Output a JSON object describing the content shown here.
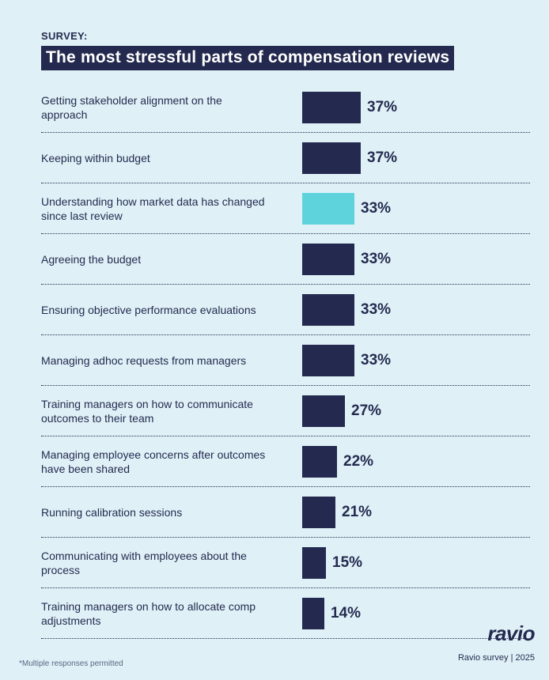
{
  "header": {
    "eyebrow": "SURVEY:",
    "title": "The most stressful parts of compensation reviews"
  },
  "colors": {
    "background": "#dff1f7",
    "bar_default": "#242a4f",
    "bar_highlight": "#5fd3dc",
    "text": "#242a4f"
  },
  "chart_data": {
    "type": "bar",
    "orientation": "horizontal",
    "title": "The most stressful parts of compensation reviews",
    "xlabel": "",
    "ylabel": "",
    "xlim": [
      0,
      37
    ],
    "grid": false,
    "unit": "%",
    "highlight_index": 2,
    "categories": [
      "Getting stakeholder alignment on the approach",
      "Keeping within budget",
      "Understanding how market data has changed since last review",
      "Agreeing the budget",
      "Ensuring objective performance evaluations",
      "Managing adhoc requests from managers",
      "Training managers on how to communicate outcomes to their team",
      "Managing employee concerns after outcomes have been shared",
      "Running calibration sessions",
      "Communicating with employees about the process",
      "Training managers on how to allocate comp adjustments"
    ],
    "values": [
      37,
      37,
      33,
      33,
      33,
      33,
      27,
      22,
      21,
      15,
      14
    ],
    "value_labels": [
      "37%",
      "37%",
      "33%",
      "33%",
      "33%",
      "33%",
      "27%",
      "22%",
      "21%",
      "15%",
      "14%"
    ]
  },
  "footer": {
    "footnote": "*Multiple responses permitted",
    "logo": "ravio",
    "source": "Ravio survey | 2025"
  }
}
